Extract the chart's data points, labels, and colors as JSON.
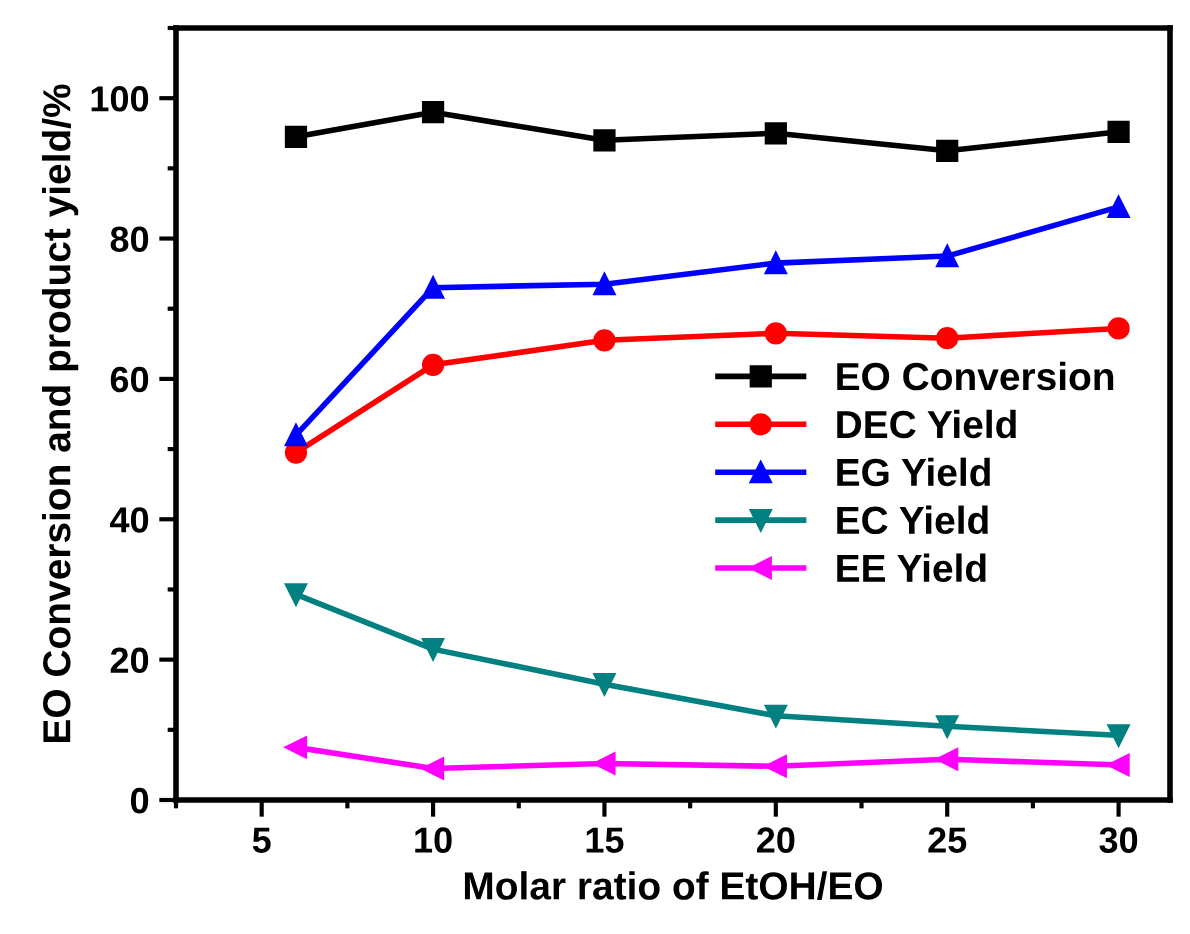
{
  "chart_data": {
    "type": "line",
    "xlabel": "Molar ratio of EtOH/EO",
    "ylabel": "EO Conversion and product yield/%",
    "x": [
      6,
      10,
      15,
      20,
      25,
      30
    ],
    "series": [
      {
        "name": "EO Conversion",
        "color": "#000000",
        "marker": "square",
        "values": [
          94.5,
          98,
          94,
          95,
          92.5,
          95.2
        ]
      },
      {
        "name": "DEC Yield",
        "color": "#ff0000",
        "marker": "circle",
        "values": [
          49.5,
          62,
          65.5,
          66.5,
          65.8,
          67.2
        ]
      },
      {
        "name": "EG Yield",
        "color": "#0000ff",
        "marker": "triangle",
        "values": [
          52,
          73,
          73.5,
          76.5,
          77.5,
          84.5
        ]
      },
      {
        "name": "EC Yield",
        "color": "#008080",
        "marker": "triangle-down",
        "values": [
          29.3,
          21.5,
          16.5,
          12,
          10.5,
          9.2
        ]
      },
      {
        "name": "EE Yield",
        "color": "#ff00ff",
        "marker": "triangle-left",
        "values": [
          7.5,
          4.5,
          5.2,
          4.8,
          5.8,
          5.0
        ]
      }
    ],
    "xlim": [
      2.5,
      31.5
    ],
    "xticks": [
      5,
      10,
      15,
      20,
      25,
      30
    ],
    "ylim": [
      0,
      110
    ],
    "yticks": [
      0,
      20,
      40,
      60,
      80,
      100
    ],
    "grid": false,
    "legend": "right",
    "line_style": "solid"
  }
}
